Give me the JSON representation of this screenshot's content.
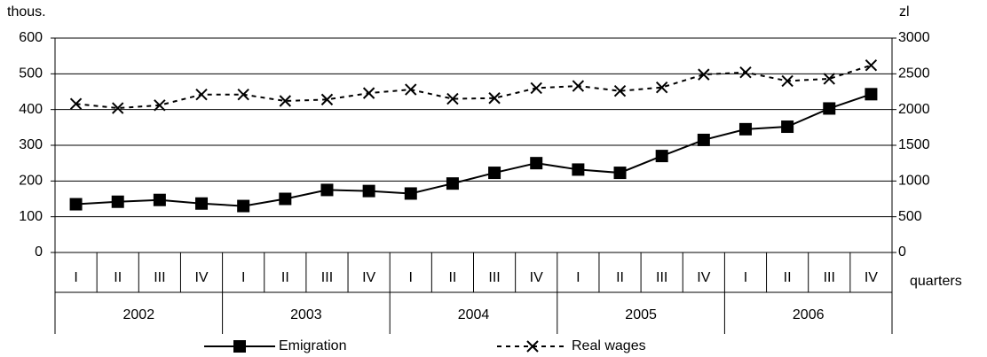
{
  "chart_data": {
    "type": "line",
    "y_unit": "thous.",
    "y2_unit": "zl",
    "x_label": "quarters",
    "categories": [
      "I",
      "II",
      "III",
      "IV",
      "I",
      "II",
      "III",
      "IV",
      "I",
      "II",
      "III",
      "IV",
      "I",
      "II",
      "III",
      "IV",
      "I",
      "II",
      "III",
      "IV"
    ],
    "years": [
      "2002",
      "2003",
      "2004",
      "2005",
      "2006"
    ],
    "series": [
      {
        "name": "Emigration",
        "color": "#000000",
        "marker": "square",
        "line_style": "solid",
        "values": [
          135,
          142,
          147,
          137,
          130,
          150,
          175,
          172,
          165,
          193,
          223,
          250,
          232,
          223,
          270,
          315,
          345,
          352,
          403,
          443
        ]
      },
      {
        "name": "Real wages",
        "color": "#000000",
        "marker": "x",
        "line_style": "dashed",
        "axis": "y2",
        "values": [
          2080,
          2020,
          2060,
          2210,
          2210,
          2120,
          2140,
          2230,
          2280,
          2150,
          2160,
          2300,
          2330,
          2260,
          2310,
          2490,
          2520,
          2400,
          2430,
          2620
        ]
      }
    ],
    "ylim": [
      0,
      600
    ],
    "yticks": [
      0,
      100,
      200,
      300,
      400,
      500,
      600
    ],
    "y2lim": [
      0,
      3000
    ],
    "y2ticks": [
      0,
      500,
      1000,
      1500,
      2000,
      2500,
      3000
    ],
    "grid": true
  }
}
